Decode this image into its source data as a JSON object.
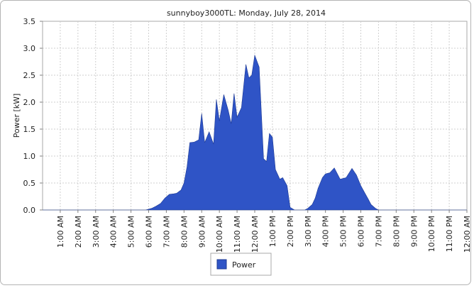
{
  "chart_data": {
    "type": "area",
    "title": "sunnyboy3000TL: Monday, July 28, 2014",
    "xlabel": "",
    "ylabel": "Power [kW]",
    "ylim": [
      0,
      3.5
    ],
    "yticks": [
      "0.0",
      "0.5",
      "1.0",
      "1.5",
      "2.0",
      "2.5",
      "3.0",
      "3.5"
    ],
    "xlim_hours": [
      0,
      24
    ],
    "xticks": [
      "1:00 AM",
      "2:00 AM",
      "3:00 AM",
      "4:00 AM",
      "5:00 AM",
      "6:00 AM",
      "7:00 AM",
      "8:00 AM",
      "9:00 AM",
      "10:00 AM",
      "11:00 AM",
      "12:00 AM",
      "1:00 PM",
      "2:00 PM",
      "3:00 PM",
      "4:00 PM",
      "5:00 PM",
      "6:00 PM",
      "7:00 PM",
      "8:00 PM",
      "9:00 PM",
      "10:00 PM",
      "11:00 PM",
      "12:00 AM"
    ],
    "grid": true,
    "legend": "bottom-center",
    "series": [
      {
        "name": "Power",
        "color": "#2f54c6",
        "x_hours": [
          0.0,
          5.0,
          5.83,
          6.17,
          6.42,
          6.67,
          6.92,
          7.17,
          7.42,
          7.58,
          7.83,
          8.0,
          8.17,
          8.33,
          8.58,
          8.83,
          9.0,
          9.17,
          9.42,
          9.67,
          9.83,
          10.0,
          10.25,
          10.5,
          10.67,
          10.83,
          11.0,
          11.25,
          11.5,
          11.67,
          11.83,
          12.0,
          12.25,
          12.5,
          12.67,
          12.83,
          13.0,
          13.17,
          13.42,
          13.58,
          13.83,
          14.0,
          14.25,
          14.42,
          14.58,
          14.83,
          15.0,
          15.25,
          15.42,
          15.58,
          15.83,
          16.0,
          16.25,
          16.5,
          16.83,
          17.17,
          17.5,
          17.75,
          18.0,
          18.25,
          18.42,
          18.58,
          18.83,
          19.0,
          19.17,
          19.42,
          19.58,
          19.83,
          20.0,
          20.25,
          20.5,
          20.75,
          21.0,
          21.33,
          21.67,
          21.83,
          24.0
        ],
        "values": [
          0.0,
          0.0,
          0.0,
          0.03,
          0.07,
          0.12,
          0.22,
          0.29,
          0.3,
          0.31,
          0.37,
          0.5,
          0.8,
          1.25,
          1.26,
          1.3,
          1.79,
          1.25,
          1.45,
          1.22,
          2.05,
          1.65,
          2.14,
          1.85,
          1.6,
          2.16,
          1.72,
          1.9,
          2.7,
          2.45,
          2.5,
          2.87,
          2.65,
          0.95,
          0.9,
          1.42,
          1.35,
          0.75,
          0.57,
          0.6,
          0.45,
          0.05,
          0.0,
          0.0,
          0.0,
          0.0,
          0.03,
          0.1,
          0.22,
          0.4,
          0.6,
          0.67,
          0.69,
          0.78,
          0.57,
          0.6,
          0.77,
          0.65,
          0.45,
          0.3,
          0.2,
          0.1,
          0.03,
          0.0,
          0.0,
          0.0,
          0.0,
          0.0,
          0.0,
          0.0,
          0.0,
          0.0,
          0.0,
          0.0,
          0.0,
          0.0,
          0.0
        ]
      }
    ]
  }
}
